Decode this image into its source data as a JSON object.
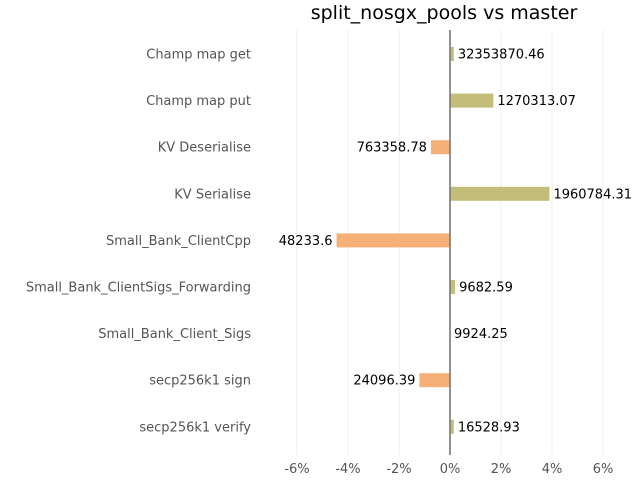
{
  "chart_data": {
    "type": "bar",
    "orientation": "horizontal",
    "title": "split_nosgx_pools vs master",
    "xlabel": "",
    "ylabel": "",
    "xlim": [
      -0.07,
      0.06
    ],
    "x_ticks": [
      -0.06,
      -0.04,
      -0.02,
      0,
      0.02,
      0.04,
      0.06
    ],
    "x_tick_labels": [
      "-6%",
      "-4%",
      "-2%",
      "0%",
      "2%",
      "4%",
      "6%"
    ],
    "grid": true,
    "legend": "none",
    "colors": {
      "positive": "#c2be7a",
      "negative": "#f4b077",
      "zero_line": "#777777"
    },
    "categories": [
      "Champ map get",
      "Champ map put",
      "KV Deserialise",
      "KV Serialise",
      "Small_Bank_ClientCpp",
      "Small_Bank_ClientSigs_Forwarding",
      "Small_Bank_Client_Sigs",
      "secp256k1 sign",
      "secp256k1 verify"
    ],
    "values": [
      0.0015,
      0.017,
      -0.0075,
      0.039,
      -0.0445,
      0.002,
      0.0,
      -0.012,
      0.0015
    ],
    "data_labels": [
      "32353870.46",
      "1270313.07",
      "763358.78",
      "1960784.31",
      "48233.6",
      "9682.59",
      "9924.25",
      "24096.39",
      "16528.93"
    ]
  }
}
